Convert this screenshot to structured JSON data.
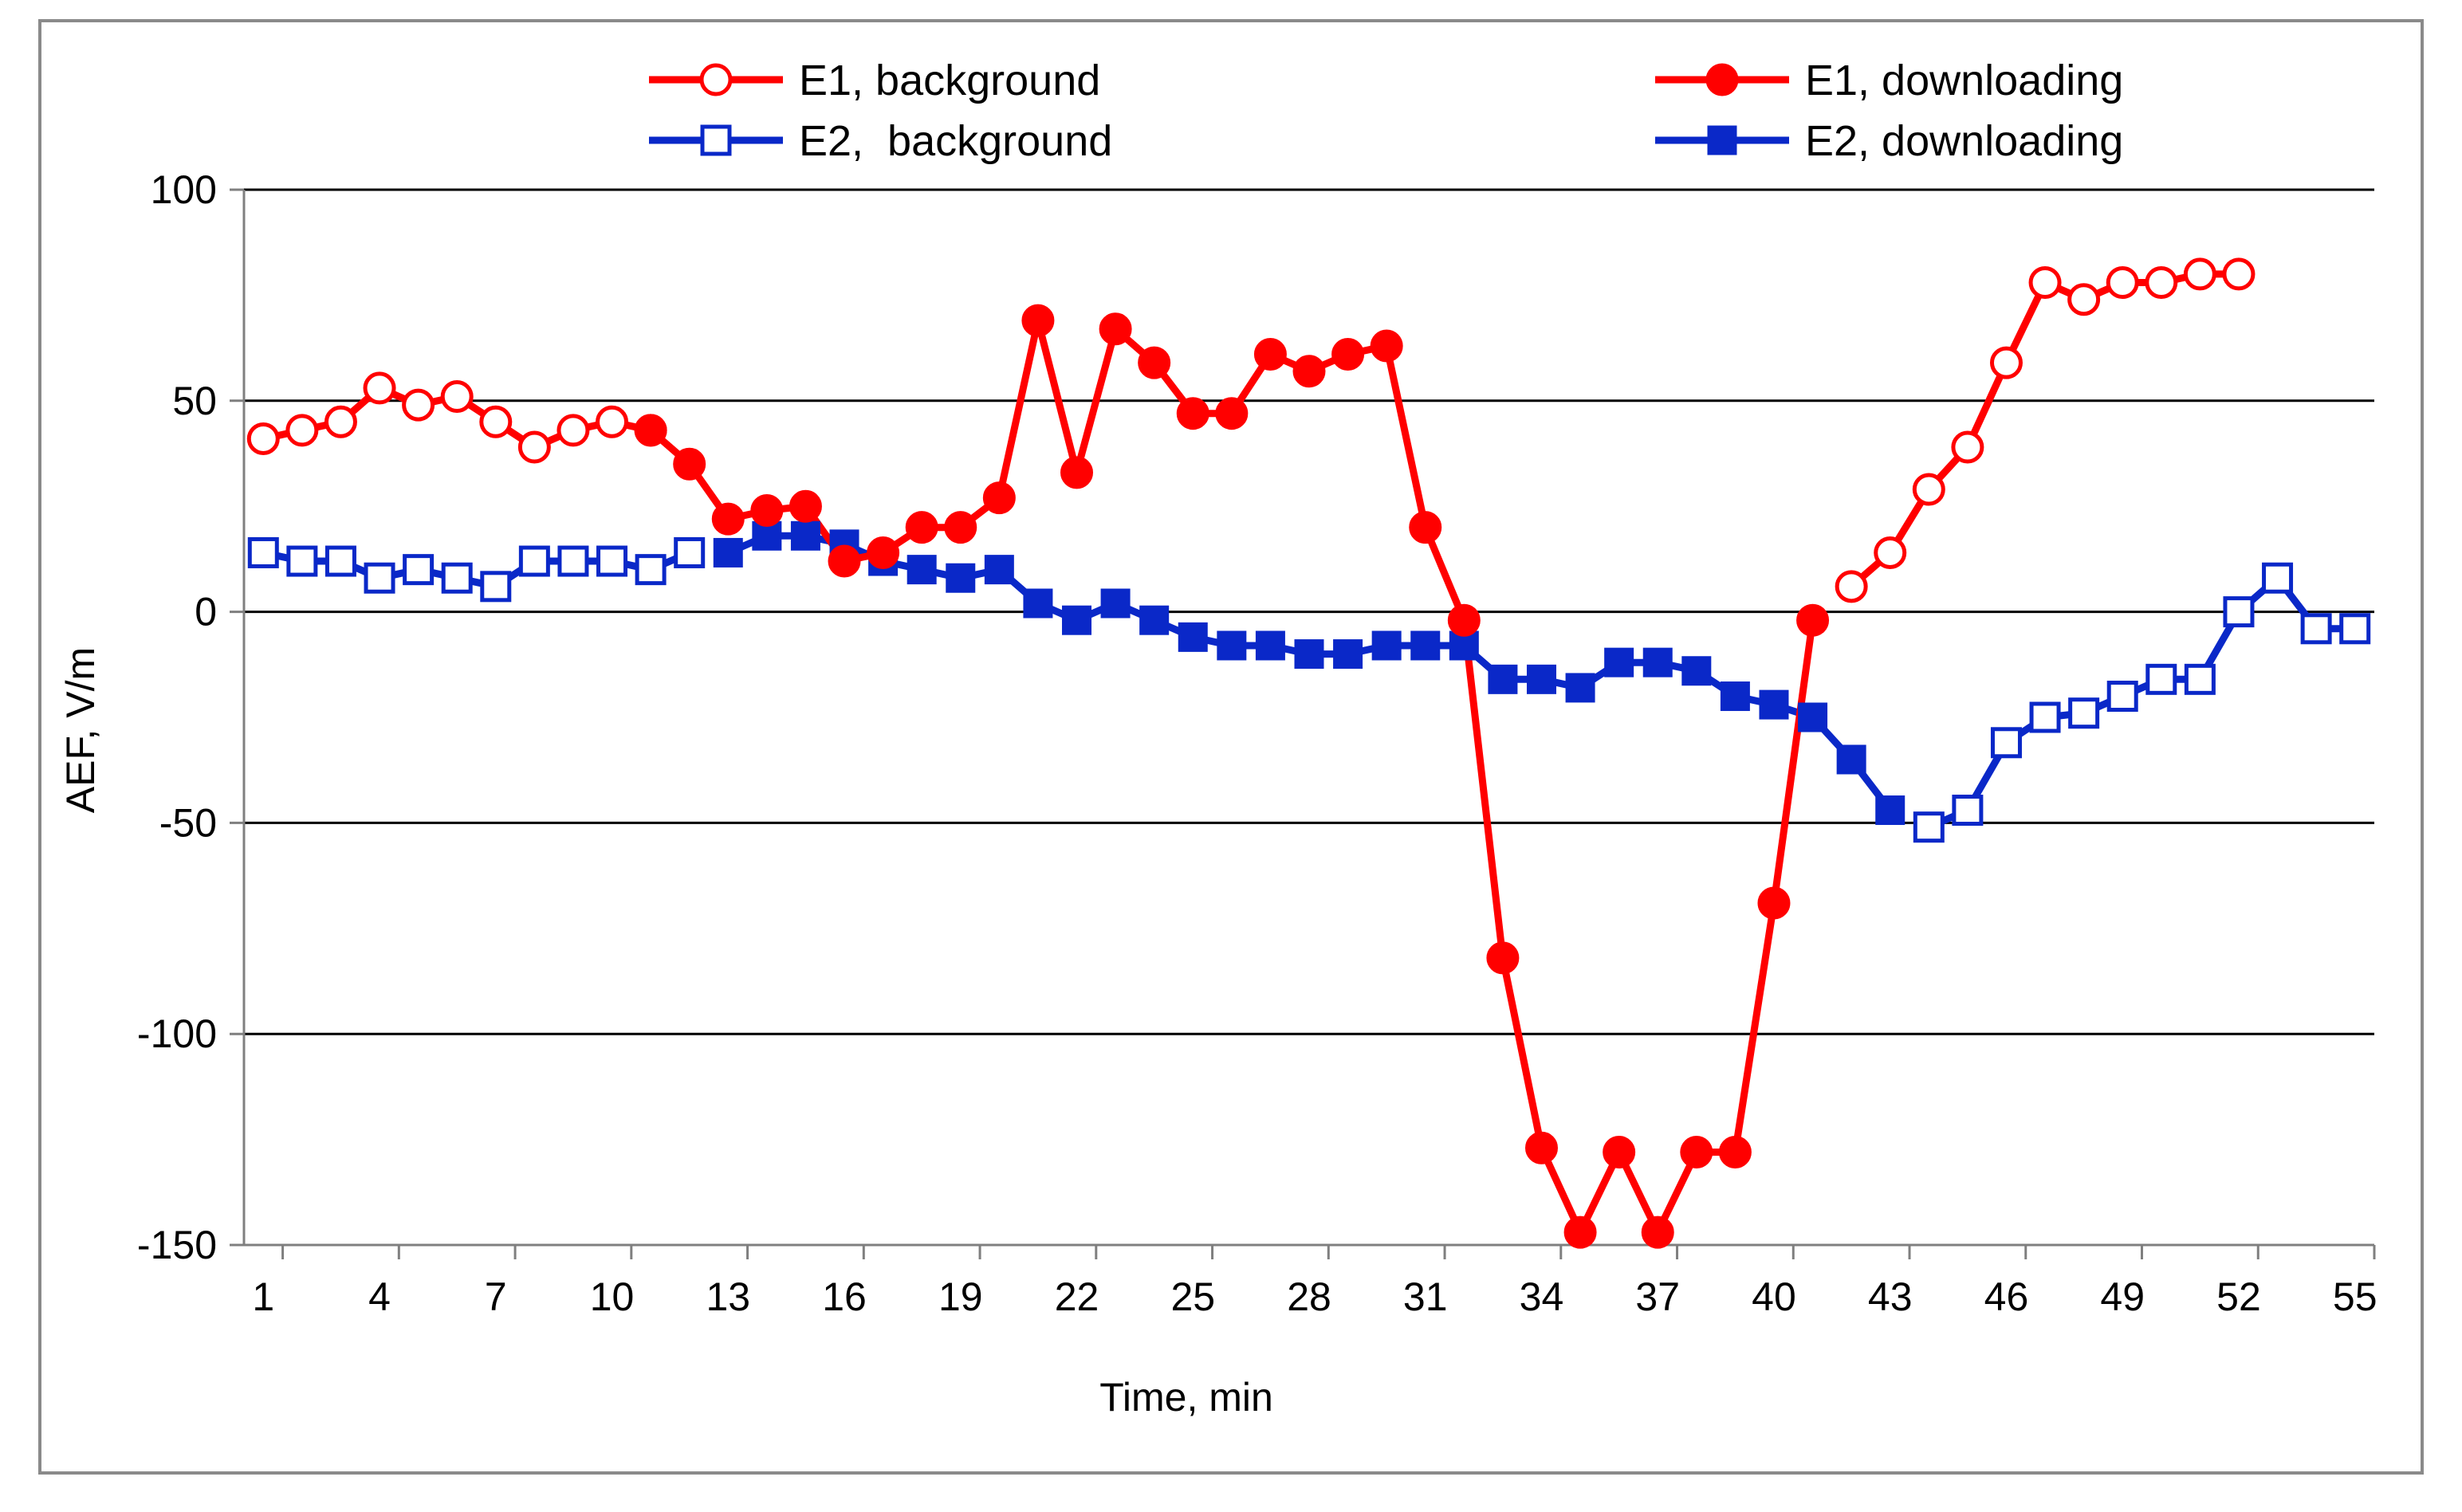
{
  "chart_data": {
    "type": "line",
    "title": "",
    "xlabel": "Time, min",
    "ylabel": "AEF, V/m",
    "xlim": [
      1,
      55
    ],
    "ylim": [
      -150,
      100
    ],
    "x_ticks": [
      1,
      4,
      7,
      10,
      13,
      16,
      19,
      22,
      25,
      28,
      31,
      34,
      37,
      40,
      43,
      46,
      49,
      52,
      55
    ],
    "x_tick_labels": [
      "1",
      "4",
      "7",
      "10",
      "13",
      "16",
      "19",
      "22",
      "25",
      "28",
      "31",
      "34",
      "37",
      "40",
      "43",
      "46",
      "49",
      "52",
      "55"
    ],
    "y_ticks": [
      100,
      50,
      0,
      -50,
      -100,
      -150
    ],
    "y_tick_labels": [
      "100",
      "50",
      "0",
      "-50",
      "-100",
      "-150"
    ],
    "grid": "horizontal",
    "legend_position": "top",
    "series": [
      {
        "name": "E1, background",
        "color": "#ff0000",
        "marker": "circle-open",
        "line": true,
        "x": [
          1,
          2,
          3,
          4,
          5,
          6,
          7,
          8,
          9,
          10,
          11
        ],
        "values": [
          41,
          43,
          45,
          53,
          49,
          51,
          45,
          39,
          43,
          45,
          43
        ]
      },
      {
        "name": "E1, downloading",
        "color": "#ff0000",
        "marker": "circle-filled",
        "line": true,
        "x": [
          11,
          12,
          13,
          14,
          15,
          16,
          17,
          18,
          19,
          20,
          21,
          22,
          23,
          24,
          25,
          26,
          27,
          28,
          29,
          30,
          31,
          32,
          33,
          34,
          35,
          36,
          37,
          38,
          39,
          40,
          41
        ],
        "values": [
          43,
          35,
          22,
          24,
          25,
          12,
          14,
          20,
          20,
          27,
          69,
          33,
          67,
          59,
          47,
          47,
          61,
          57,
          61,
          63,
          20,
          -2,
          -82,
          -127,
          -147,
          -128,
          -147,
          -128,
          -128,
          -69,
          -2
        ]
      },
      {
        "name": "E1, background",
        "color": "#ff0000",
        "marker": "circle-open",
        "line": true,
        "x": [
          42,
          43,
          44,
          45,
          46,
          47,
          48,
          49,
          50,
          51,
          52
        ],
        "values": [
          6,
          14,
          29,
          39,
          59,
          78,
          74,
          78,
          78,
          80,
          80
        ]
      },
      {
        "name": "E2,  background",
        "color": "#0a28c8",
        "marker": "square-open",
        "line": true,
        "x": [
          1,
          2,
          3,
          4,
          5,
          6,
          7,
          8,
          9,
          10,
          11,
          12
        ],
        "values": [
          14,
          12,
          12,
          8,
          10,
          8,
          6,
          12,
          12,
          12,
          10,
          14
        ]
      },
      {
        "name": "E2, downloading",
        "color": "#0a28c8",
        "marker": "square-filled",
        "line": true,
        "x": [
          13,
          14,
          15,
          16,
          17,
          18,
          19,
          20,
          21,
          22,
          23,
          24,
          25,
          26,
          27,
          28,
          29,
          30,
          31,
          32,
          33,
          34,
          35,
          36,
          37,
          38,
          39,
          40,
          41,
          42,
          43
        ],
        "values": [
          14,
          18,
          18,
          16,
          12,
          10,
          8,
          10,
          2,
          -2,
          2,
          -2,
          -6,
          -8,
          -8,
          -10,
          -10,
          -8,
          -8,
          -8,
          -16,
          -16,
          -18,
          -12,
          -12,
          -14,
          -20,
          -22,
          -25,
          -35,
          -47
        ]
      },
      {
        "name": "E2,  background",
        "color": "#0a28c8",
        "marker": "square-open",
        "line": true,
        "x": [
          44,
          45,
          46,
          47,
          48,
          49,
          50,
          51,
          52,
          53,
          54,
          55
        ],
        "values": [
          -51,
          -47,
          -31,
          -25,
          -24,
          -20,
          -16,
          -16,
          0,
          8,
          -4,
          -4
        ]
      }
    ],
    "legend": [
      {
        "label": "E1, background",
        "color": "#ff0000",
        "marker": "circle-open"
      },
      {
        "label": "E1, downloading",
        "color": "#ff0000",
        "marker": "circle-filled"
      },
      {
        "label": "E2,  background",
        "color": "#0a28c8",
        "marker": "square-open"
      },
      {
        "label": "E2, downloading",
        "color": "#0a28c8",
        "marker": "square-filled"
      }
    ]
  }
}
